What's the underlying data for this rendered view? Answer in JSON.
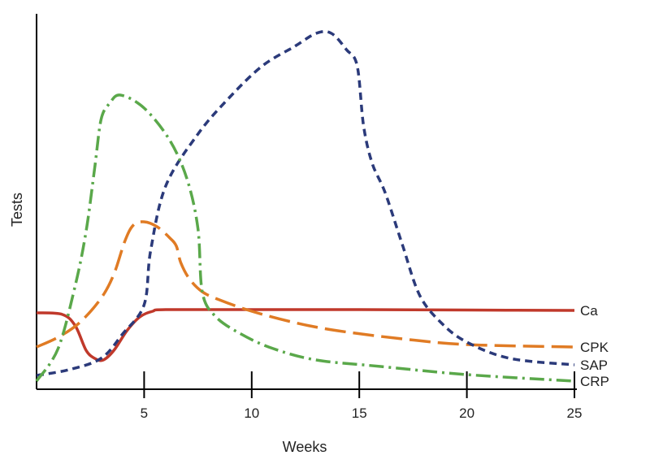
{
  "chart_data": {
    "type": "line",
    "xlabel": "Weeks",
    "ylabel": "Tests",
    "xlim": [
      0,
      25
    ],
    "x_ticks": [
      5,
      10,
      15,
      20,
      25
    ],
    "grid": false,
    "series": [
      {
        "name": "Ca",
        "color": "#c0392b",
        "dash": "solid",
        "points": [
          [
            0,
            84
          ],
          [
            1.2,
            82
          ],
          [
            1.8,
            68
          ],
          [
            2.3,
            38
          ],
          [
            2.7,
            28
          ],
          [
            3.1,
            26
          ],
          [
            3.6,
            38
          ],
          [
            4.2,
            62
          ],
          [
            4.8,
            79
          ],
          [
            5.4,
            86
          ],
          [
            6,
            88
          ],
          [
            10,
            88
          ],
          [
            15,
            88
          ],
          [
            20,
            87.5
          ],
          [
            25,
            87
          ]
        ]
      },
      {
        "name": "CPK",
        "color": "#e07b24",
        "dash": "long-dash",
        "points": [
          [
            0,
            42
          ],
          [
            1,
            54
          ],
          [
            2,
            72
          ],
          [
            3,
            102
          ],
          [
            3.6,
            132
          ],
          [
            4.1,
            172
          ],
          [
            4.5,
            192
          ],
          [
            5,
            196
          ],
          [
            5.6,
            190
          ],
          [
            6.2,
            176
          ],
          [
            6.5,
            166
          ],
          [
            6.7,
            146
          ],
          [
            7.1,
            126
          ],
          [
            7.7,
            110
          ],
          [
            8.5,
            100
          ],
          [
            10,
            86
          ],
          [
            12,
            72
          ],
          [
            14,
            62
          ],
          [
            17,
            52
          ],
          [
            20,
            45
          ],
          [
            25,
            42
          ]
        ]
      },
      {
        "name": "SAP",
        "color": "#2b3a7a",
        "dash": "short-dash",
        "points": [
          [
            0,
            7
          ],
          [
            1.5,
            14
          ],
          [
            3,
            28
          ],
          [
            4,
            58
          ],
          [
            5,
            94
          ],
          [
            5.3,
            160
          ],
          [
            6,
            240
          ],
          [
            7.5,
            304
          ],
          [
            9,
            350
          ],
          [
            10.5,
            388
          ],
          [
            12,
            412
          ],
          [
            13,
            428
          ],
          [
            13.7,
            428
          ],
          [
            14.4,
            408
          ],
          [
            14.9,
            388
          ],
          [
            15.2,
            314
          ],
          [
            15.6,
            268
          ],
          [
            16.2,
            232
          ],
          [
            17,
            168
          ],
          [
            17.8,
            106
          ],
          [
            18.8,
            72
          ],
          [
            20,
            48
          ],
          [
            22,
            28
          ],
          [
            25,
            20
          ]
        ]
      },
      {
        "name": "CRP",
        "color": "#5aa84a",
        "dash": "dash-dot",
        "points": [
          [
            0,
            0
          ],
          [
            1,
            40
          ],
          [
            1.8,
            118
          ],
          [
            2.3,
            184
          ],
          [
            2.7,
            262
          ],
          [
            3,
            322
          ],
          [
            3.4,
            342
          ],
          [
            3.9,
            352
          ],
          [
            5,
            336
          ],
          [
            6.2,
            296
          ],
          [
            7,
            248
          ],
          [
            7.5,
            188
          ],
          [
            7.7,
            110
          ],
          [
            8.3,
            80
          ],
          [
            9.5,
            58
          ],
          [
            11,
            40
          ],
          [
            13,
            26
          ],
          [
            16,
            18
          ],
          [
            20,
            8
          ],
          [
            25,
            0
          ]
        ]
      }
    ]
  }
}
